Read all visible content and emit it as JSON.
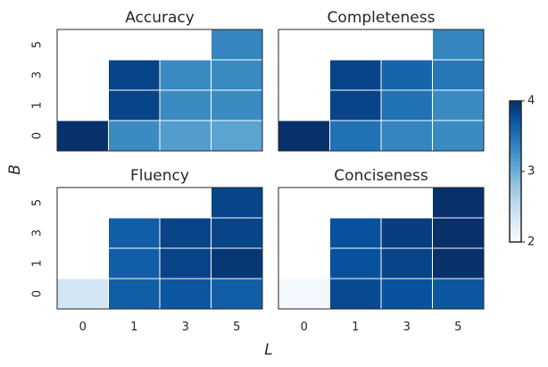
{
  "chart_data": {
    "type": "heatmap",
    "xlabel": "L",
    "ylabel": "B",
    "x_categories": [
      "0",
      "1",
      "3",
      "5"
    ],
    "y_categories": [
      "0",
      "1",
      "3",
      "5"
    ],
    "colormap": "Blues",
    "colorbar": {
      "min": 2,
      "max": 4,
      "ticks": [
        "2",
        "3",
        "4"
      ]
    },
    "missing_color": "#ffffff",
    "panels": [
      {
        "title": "Accuracy",
        "rows": [
          {
            "B": "5",
            "values": [
              null,
              null,
              null,
              3.35
            ]
          },
          {
            "B": "3",
            "values": [
              null,
              3.85,
              3.3,
              3.3
            ]
          },
          {
            "B": "1",
            "values": [
              null,
              3.85,
              3.3,
              3.3
            ]
          },
          {
            "B": "0",
            "values": [
              4.0,
              3.3,
              3.15,
              3.1
            ]
          }
        ]
      },
      {
        "title": "Completeness",
        "rows": [
          {
            "B": "5",
            "values": [
              null,
              null,
              null,
              3.35
            ]
          },
          {
            "B": "3",
            "values": [
              null,
              3.85,
              3.6,
              3.45
            ]
          },
          {
            "B": "1",
            "values": [
              null,
              3.85,
              3.5,
              3.3
            ]
          },
          {
            "B": "0",
            "values": [
              4.0,
              3.5,
              3.35,
              3.3
            ]
          }
        ]
      },
      {
        "title": "Fluency",
        "rows": [
          {
            "B": "5",
            "values": [
              null,
              null,
              null,
              3.85
            ]
          },
          {
            "B": "3",
            "values": [
              null,
              3.65,
              3.85,
              3.85
            ]
          },
          {
            "B": "1",
            "values": [
              null,
              3.65,
              3.85,
              3.95
            ]
          },
          {
            "B": "0",
            "values": [
              2.35,
              3.65,
              3.7,
              3.65
            ]
          }
        ]
      },
      {
        "title": "Conciseness",
        "rows": [
          {
            "B": "5",
            "values": [
              null,
              null,
              null,
              4.0
            ]
          },
          {
            "B": "3",
            "values": [
              null,
              3.75,
              3.9,
              4.0
            ]
          },
          {
            "B": "1",
            "values": [
              null,
              3.75,
              3.85,
              4.0
            ]
          },
          {
            "B": "0",
            "values": [
              2.05,
              3.8,
              3.75,
              3.7
            ]
          }
        ]
      }
    ]
  }
}
